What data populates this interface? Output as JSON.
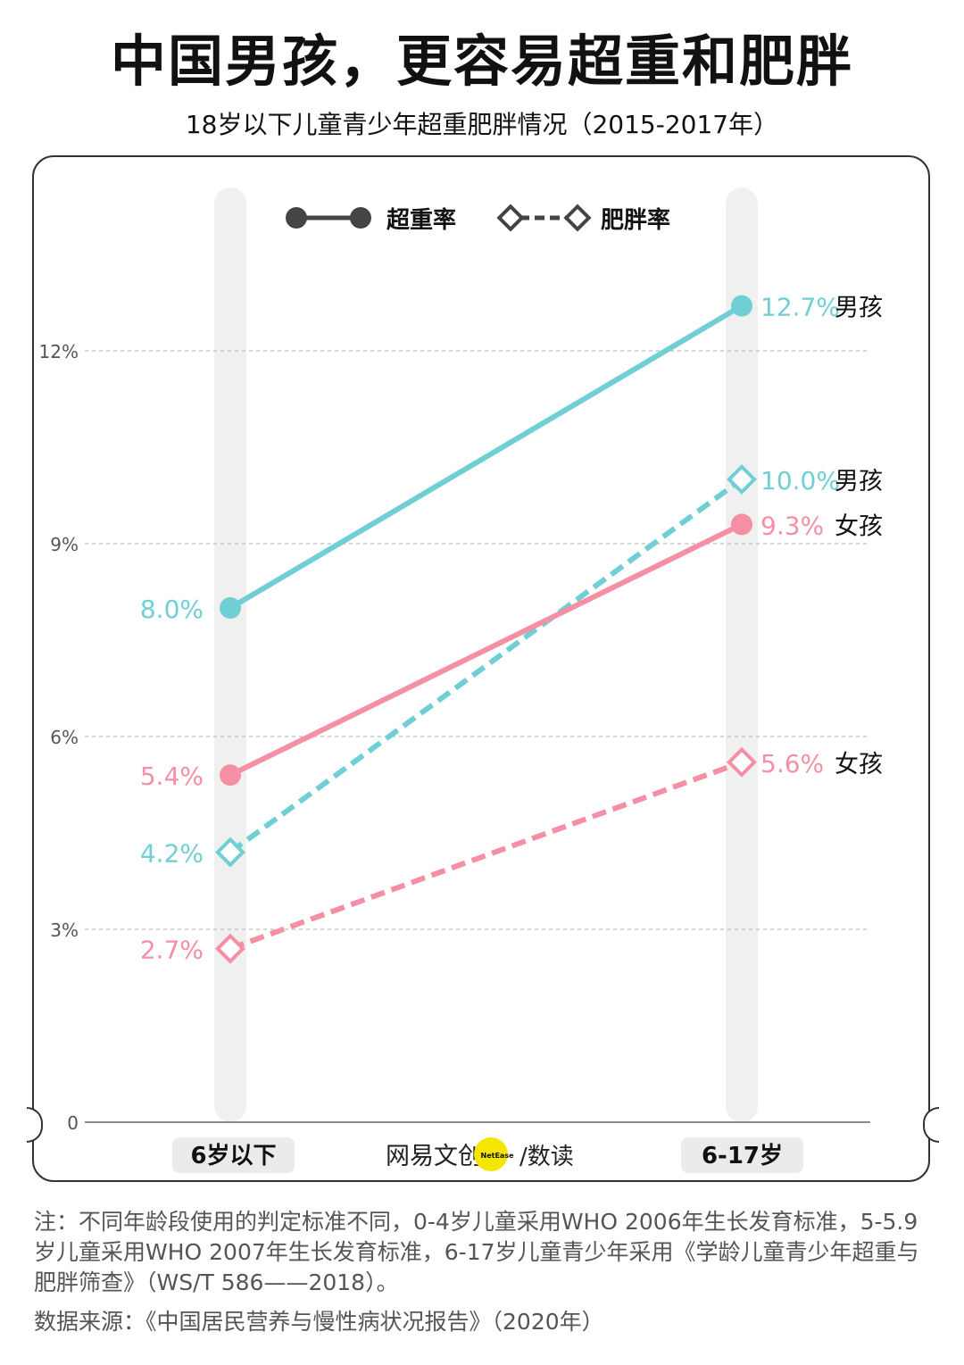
{
  "header": {
    "title": "中国男孩，更容易超重和肥胖",
    "subtitle": "18岁以下儿童青少年超重肥胖情况（2015-2017年）"
  },
  "legend": {
    "overweight": "超重率",
    "obesity": "肥胖率"
  },
  "brand": {
    "name": "网易文创",
    "badge": "NetEase",
    "suffix": "/数读"
  },
  "footer": {
    "note": "注：不同年龄段使用的判定标准不同，0-4岁儿童采用WHO 2006年生长发育标准，5-5.9岁儿童采用WHO 2007年生长发育标准，6-17岁儿童青少年采用《学龄儿童青少年超重与肥胖筛查》（WS/T 586——2018）。",
    "source": "数据来源：《中国居民营养与慢性病状况报告》（2020年）"
  },
  "colors": {
    "boys": "#6fcfd4",
    "girls": "#f58fa4",
    "column_band": "#f0f0f0",
    "grid": "#bbbbbb",
    "brand_badge": "#f5e600"
  },
  "chart_data": {
    "type": "line",
    "title": "中国男孩，更容易超重和肥胖",
    "subtitle": "18岁以下儿童青少年超重肥胖情况（2015-2017年）",
    "categories": [
      "6岁以下",
      "6-17岁"
    ],
    "ylim": [
      0,
      13.5
    ],
    "yticks": [
      0,
      3,
      6,
      9,
      12
    ],
    "ytick_labels": [
      "0",
      "3%",
      "6%",
      "9%",
      "12%"
    ],
    "grid": true,
    "legend_position": "top-center",
    "series": [
      {
        "metric": "超重率",
        "group": "男孩",
        "style": "solid-circle",
        "color": "#6fcfd4",
        "values": [
          8.0,
          12.7
        ],
        "labels": [
          "8.0%",
          "12.7%"
        ]
      },
      {
        "metric": "肥胖率",
        "group": "男孩",
        "style": "dashed-diamond",
        "color": "#6fcfd4",
        "values": [
          4.2,
          10.0
        ],
        "labels": [
          "4.2%",
          "10.0%"
        ]
      },
      {
        "metric": "超重率",
        "group": "女孩",
        "style": "solid-circle",
        "color": "#f58fa4",
        "values": [
          5.4,
          9.3
        ],
        "labels": [
          "5.4%",
          "9.3%"
        ]
      },
      {
        "metric": "肥胖率",
        "group": "女孩",
        "style": "dashed-diamond",
        "color": "#f58fa4",
        "values": [
          2.7,
          5.6
        ],
        "labels": [
          "2.7%",
          "5.6%"
        ]
      }
    ]
  }
}
